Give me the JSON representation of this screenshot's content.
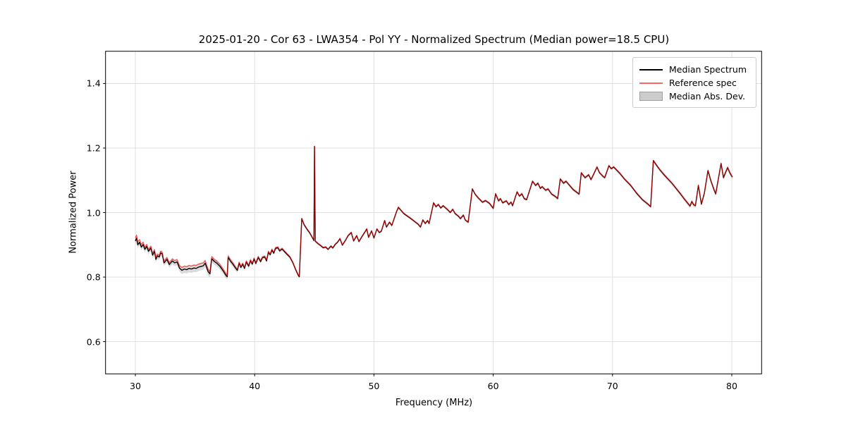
{
  "chart_data": {
    "type": "line",
    "title": "2025-01-20 - Cor 63 - LWA354 - Pol YY - Normalized Spectrum (Median power=18.5 CPU)",
    "xlabel": "Frequency (MHz)",
    "ylabel": "Normalized Power",
    "xlim": [
      27.5,
      82.5
    ],
    "ylim": [
      0.5,
      1.5
    ],
    "grid": true,
    "xticks": [
      30,
      40,
      50,
      60,
      70,
      80
    ],
    "xtick_labels": [
      "30",
      "40",
      "50",
      "60",
      "70",
      "80"
    ],
    "yticks": [
      0.6,
      0.8,
      1.0,
      1.2,
      1.4
    ],
    "ytick_labels": [
      "0.6",
      "0.8",
      "1.0",
      "1.2",
      "1.4"
    ],
    "legend": {
      "position": "upper right",
      "entries": [
        {
          "label": "Median Spectrum",
          "swatch": "line",
          "color": "#000000"
        },
        {
          "label": "Reference spec",
          "swatch": "line",
          "color": "#ff6666"
        },
        {
          "label": "Median Abs. Dev.",
          "swatch": "patch",
          "color": "#cccccc"
        }
      ]
    },
    "colors": {
      "median_line": "#000000",
      "reference_line": "#ff0000",
      "reference_opacity": 0.62,
      "band_fill": "#bbbbbb",
      "band_opacity": 0.55,
      "grid_line": "#e0e0e0",
      "spine": "#000000"
    },
    "series": [
      {
        "name": "Median Spectrum",
        "points": [
          [
            30.0,
            0.912
          ],
          [
            30.1,
            0.921
          ],
          [
            30.2,
            0.9
          ],
          [
            30.35,
            0.908
          ],
          [
            30.5,
            0.893
          ],
          [
            30.65,
            0.901
          ],
          [
            30.8,
            0.886
          ],
          [
            30.95,
            0.895
          ],
          [
            31.1,
            0.88
          ],
          [
            31.3,
            0.89
          ],
          [
            31.45,
            0.868
          ],
          [
            31.6,
            0.88
          ],
          [
            31.72,
            0.855
          ],
          [
            31.85,
            0.866
          ],
          [
            32.0,
            0.862
          ],
          [
            32.12,
            0.875
          ],
          [
            32.25,
            0.872
          ],
          [
            32.4,
            0.844
          ],
          [
            32.65,
            0.855
          ],
          [
            32.85,
            0.839
          ],
          [
            33.1,
            0.85
          ],
          [
            33.3,
            0.844
          ],
          [
            33.5,
            0.847
          ],
          [
            33.7,
            0.828
          ],
          [
            33.9,
            0.821
          ],
          [
            34.1,
            0.825
          ],
          [
            34.3,
            0.823
          ],
          [
            34.5,
            0.827
          ],
          [
            34.7,
            0.825
          ],
          [
            34.9,
            0.828
          ],
          [
            35.1,
            0.827
          ],
          [
            35.3,
            0.831
          ],
          [
            35.5,
            0.833
          ],
          [
            35.7,
            0.835
          ],
          [
            35.85,
            0.843
          ],
          [
            36.1,
            0.817
          ],
          [
            36.25,
            0.81
          ],
          [
            36.4,
            0.857
          ],
          [
            36.6,
            0.849
          ],
          [
            36.8,
            0.844
          ],
          [
            37.1,
            0.833
          ],
          [
            37.4,
            0.817
          ],
          [
            37.6,
            0.805
          ],
          [
            37.7,
            0.801
          ],
          [
            37.78,
            0.861
          ],
          [
            38.0,
            0.848
          ],
          [
            38.2,
            0.839
          ],
          [
            38.4,
            0.828
          ],
          [
            38.55,
            0.821
          ],
          [
            38.7,
            0.843
          ],
          [
            38.85,
            0.83
          ],
          [
            39.0,
            0.84
          ],
          [
            39.15,
            0.827
          ],
          [
            39.3,
            0.847
          ],
          [
            39.5,
            0.834
          ],
          [
            39.65,
            0.851
          ],
          [
            39.8,
            0.84
          ],
          [
            39.95,
            0.856
          ],
          [
            40.1,
            0.842
          ],
          [
            40.3,
            0.861
          ],
          [
            40.5,
            0.848
          ],
          [
            40.65,
            0.86
          ],
          [
            40.85,
            0.862
          ],
          [
            41.0,
            0.85
          ],
          [
            41.15,
            0.877
          ],
          [
            41.3,
            0.869
          ],
          [
            41.45,
            0.884
          ],
          [
            41.6,
            0.874
          ],
          [
            41.75,
            0.889
          ],
          [
            41.95,
            0.891
          ],
          [
            42.1,
            0.881
          ],
          [
            42.3,
            0.887
          ],
          [
            42.5,
            0.879
          ],
          [
            42.7,
            0.871
          ],
          [
            42.95,
            0.862
          ],
          [
            43.2,
            0.845
          ],
          [
            43.45,
            0.822
          ],
          [
            43.65,
            0.806
          ],
          [
            43.75,
            0.801
          ],
          [
            43.95,
            0.981
          ],
          [
            44.15,
            0.962
          ],
          [
            44.4,
            0.948
          ],
          [
            44.6,
            0.938
          ],
          [
            44.8,
            0.925
          ],
          [
            44.97,
            0.913
          ],
          [
            45.02,
            1.205
          ],
          [
            45.08,
            0.911
          ],
          [
            45.3,
            0.904
          ],
          [
            45.55,
            0.897
          ],
          [
            45.75,
            0.891
          ],
          [
            45.95,
            0.893
          ],
          [
            46.15,
            0.886
          ],
          [
            46.4,
            0.896
          ],
          [
            46.55,
            0.89
          ],
          [
            46.75,
            0.901
          ],
          [
            46.95,
            0.908
          ],
          [
            47.15,
            0.919
          ],
          [
            47.35,
            0.899
          ],
          [
            47.6,
            0.913
          ],
          [
            47.85,
            0.929
          ],
          [
            48.1,
            0.938
          ],
          [
            48.3,
            0.912
          ],
          [
            48.55,
            0.928
          ],
          [
            48.75,
            0.91
          ],
          [
            49.0,
            0.926
          ],
          [
            49.25,
            0.94
          ],
          [
            49.4,
            0.949
          ],
          [
            49.55,
            0.923
          ],
          [
            49.8,
            0.943
          ],
          [
            50.0,
            0.921
          ],
          [
            50.25,
            0.949
          ],
          [
            50.45,
            0.938
          ],
          [
            50.62,
            0.942
          ],
          [
            50.9,
            0.975
          ],
          [
            51.05,
            0.955
          ],
          [
            51.3,
            0.97
          ],
          [
            51.5,
            0.96
          ],
          [
            51.9,
            1.003
          ],
          [
            52.05,
            1.016
          ],
          [
            52.5,
            0.997
          ],
          [
            53.1,
            0.981
          ],
          [
            53.7,
            0.964
          ],
          [
            53.9,
            0.955
          ],
          [
            54.1,
            0.977
          ],
          [
            54.3,
            0.966
          ],
          [
            54.5,
            0.975
          ],
          [
            54.62,
            0.966
          ],
          [
            55.0,
            1.03
          ],
          [
            55.2,
            1.018
          ],
          [
            55.4,
            1.025
          ],
          [
            55.6,
            1.014
          ],
          [
            55.8,
            1.021
          ],
          [
            56.2,
            1.008
          ],
          [
            56.4,
            1.0
          ],
          [
            56.6,
            1.01
          ],
          [
            56.8,
            0.997
          ],
          [
            57.1,
            0.988
          ],
          [
            57.25,
            0.981
          ],
          [
            57.5,
            0.992
          ],
          [
            57.65,
            0.977
          ],
          [
            57.9,
            0.97
          ],
          [
            58.25,
            1.073
          ],
          [
            58.5,
            1.056
          ],
          [
            58.8,
            1.043
          ],
          [
            59.1,
            1.032
          ],
          [
            59.35,
            1.037
          ],
          [
            59.7,
            1.028
          ],
          [
            60.0,
            1.013
          ],
          [
            60.2,
            1.058
          ],
          [
            60.45,
            1.036
          ],
          [
            60.6,
            1.043
          ],
          [
            60.8,
            1.03
          ],
          [
            61.1,
            1.036
          ],
          [
            61.3,
            1.025
          ],
          [
            61.5,
            1.032
          ],
          [
            61.62,
            1.021
          ],
          [
            62.0,
            1.064
          ],
          [
            62.2,
            1.051
          ],
          [
            62.4,
            1.058
          ],
          [
            62.6,
            1.043
          ],
          [
            62.8,
            1.04
          ],
          [
            63.3,
            1.097
          ],
          [
            63.55,
            1.084
          ],
          [
            63.75,
            1.091
          ],
          [
            63.95,
            1.075
          ],
          [
            64.1,
            1.08
          ],
          [
            64.4,
            1.069
          ],
          [
            64.6,
            1.073
          ],
          [
            64.9,
            1.057
          ],
          [
            65.2,
            1.05
          ],
          [
            65.4,
            1.043
          ],
          [
            65.62,
            1.104
          ],
          [
            65.9,
            1.091
          ],
          [
            66.1,
            1.097
          ],
          [
            66.4,
            1.084
          ],
          [
            66.7,
            1.071
          ],
          [
            67.0,
            1.063
          ],
          [
            67.2,
            1.057
          ],
          [
            67.38,
            1.123
          ],
          [
            67.7,
            1.108
          ],
          [
            68.0,
            1.117
          ],
          [
            68.2,
            1.102
          ],
          [
            68.45,
            1.121
          ],
          [
            68.7,
            1.141
          ],
          [
            68.9,
            1.124
          ],
          [
            69.2,
            1.112
          ],
          [
            69.35,
            1.108
          ],
          [
            69.7,
            1.145
          ],
          [
            69.9,
            1.136
          ],
          [
            70.1,
            1.141
          ],
          [
            70.6,
            1.122
          ],
          [
            71.0,
            1.104
          ],
          [
            71.5,
            1.085
          ],
          [
            72.0,
            1.061
          ],
          [
            72.5,
            1.04
          ],
          [
            73.0,
            1.025
          ],
          [
            73.2,
            1.018
          ],
          [
            73.42,
            1.161
          ],
          [
            73.7,
            1.146
          ],
          [
            74.0,
            1.131
          ],
          [
            74.3,
            1.118
          ],
          [
            74.6,
            1.106
          ],
          [
            75.0,
            1.09
          ],
          [
            75.3,
            1.076
          ],
          [
            75.7,
            1.058
          ],
          [
            76.0,
            1.043
          ],
          [
            76.3,
            1.029
          ],
          [
            76.5,
            1.02
          ],
          [
            76.65,
            1.034
          ],
          [
            76.8,
            1.024
          ],
          [
            76.95,
            1.021
          ],
          [
            77.2,
            1.084
          ],
          [
            77.45,
            1.026
          ],
          [
            77.7,
            1.06
          ],
          [
            78.0,
            1.13
          ],
          [
            78.25,
            1.098
          ],
          [
            78.5,
            1.072
          ],
          [
            78.65,
            1.058
          ],
          [
            79.1,
            1.152
          ],
          [
            79.3,
            1.108
          ],
          [
            79.5,
            1.126
          ],
          [
            79.65,
            1.139
          ],
          [
            79.85,
            1.122
          ],
          [
            80.05,
            1.11
          ]
        ]
      },
      {
        "name": "Reference spec",
        "derived_from": "Median Spectrum",
        "offsets": [
          [
            30.0,
            0.01
          ],
          [
            31.0,
            0.006
          ],
          [
            32.0,
            0.005
          ],
          [
            33.0,
            0.006
          ],
          [
            33.8,
            0.008
          ],
          [
            34.2,
            0.009
          ],
          [
            35.8,
            0.009
          ],
          [
            36.3,
            0.006
          ],
          [
            37.2,
            0.006
          ],
          [
            38.0,
            0.004
          ],
          [
            39.0,
            0.003
          ],
          [
            41.0,
            0.003
          ],
          [
            43.0,
            0.002
          ],
          [
            44.0,
            0.0015
          ],
          [
            45.0,
            0.001
          ],
          [
            80.05,
            0.001
          ]
        ]
      },
      {
        "name": "Median Abs. Dev.",
        "band_halfwidths": [
          [
            30.0,
            0.011
          ],
          [
            31.0,
            0.009
          ],
          [
            33.5,
            0.01
          ],
          [
            34.0,
            0.012
          ],
          [
            36.0,
            0.012
          ],
          [
            37.0,
            0.01
          ],
          [
            38.0,
            0.009
          ],
          [
            39.0,
            0.007
          ],
          [
            41.0,
            0.006
          ],
          [
            43.0,
            0.005
          ],
          [
            44.0,
            0.005
          ],
          [
            46.0,
            0.004
          ],
          [
            55.0,
            0.004
          ],
          [
            60.0,
            0.0045
          ],
          [
            65.0,
            0.005
          ],
          [
            73.0,
            0.005
          ],
          [
            75.0,
            0.006
          ],
          [
            77.0,
            0.007
          ],
          [
            78.0,
            0.008
          ],
          [
            80.05,
            0.008
          ]
        ]
      }
    ]
  }
}
